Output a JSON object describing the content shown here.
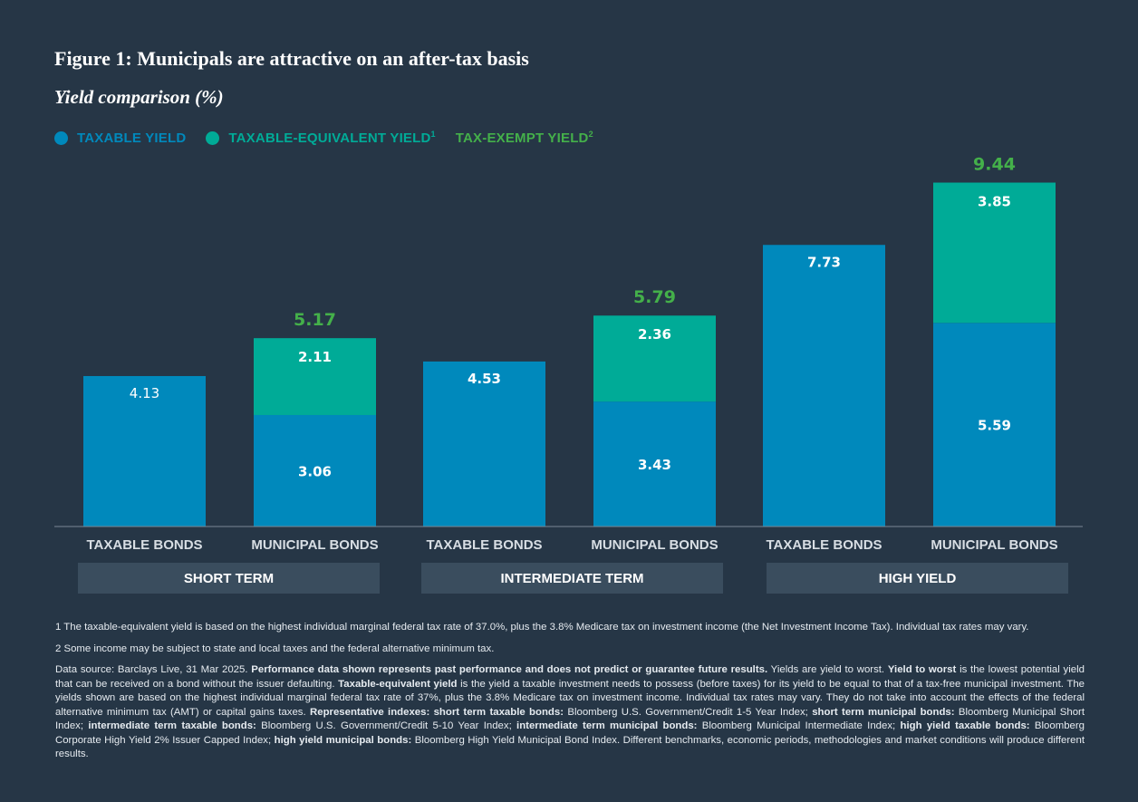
{
  "title": "Figure 1: Municipals are attractive on an after-tax basis",
  "subtitle": "Yield comparison (%)",
  "legend": {
    "taxable": "TAXABLE YIELD",
    "taxable_equivalent": "TAXABLE-EQUIVALENT YIELD",
    "taxable_equivalent_sup": "1",
    "tax_exempt": "TAX-EXEMPT YIELD",
    "tax_exempt_sup": "2"
  },
  "colors": {
    "background": "#263646",
    "taxable": "#0089bc",
    "taxable_equivalent": "#00ab97",
    "tax_exempt_text": "#44b04a",
    "group_box": "#3a4d5e",
    "axis_label": "#d8dee4"
  },
  "chart_data": {
    "type": "bar",
    "stacked": true,
    "categories": [
      "TAXABLE BONDS",
      "MUNICIPAL BONDS",
      "TAXABLE BONDS",
      "MUNICIPAL BONDS",
      "TAXABLE BONDS",
      "MUNICIPAL BONDS"
    ],
    "groups": [
      "SHORT TERM",
      "INTERMEDIATE TERM",
      "HIGH YIELD"
    ],
    "series": [
      {
        "name": "TAXABLE YIELD",
        "values": [
          4.13,
          3.06,
          4.53,
          3.43,
          7.73,
          5.59
        ]
      },
      {
        "name": "TAXABLE-EQUIVALENT YIELD",
        "values": [
          0,
          2.11,
          0,
          2.36,
          0,
          3.85
        ]
      }
    ],
    "totals": [
      null,
      "5.17",
      null,
      "5.79",
      null,
      "9.44"
    ],
    "ylim": [
      0,
      10
    ],
    "grid": false,
    "legend_position": "top-left"
  },
  "notes": {
    "note1": "1 The taxable-equivalent yield is based on the highest individual marginal federal tax rate of 37.0%, plus the 3.8% Medicare tax on investment income (the Net Investment Income Tax). Individual tax rates may vary.",
    "note2": "2 Some income may be subject to state and local taxes and the federal alternative minimum tax.",
    "s1": "Data source: Barclays Live, 31 Mar 2025. ",
    "s2": "Performance data shown represents past performance and does not predict or guarantee future results.",
    "s3": " Yields are yield to worst. ",
    "s4": "Yield to worst",
    "s5": " is the lowest potential yield that can be received on a bond without the issuer defaulting. ",
    "s6": "Taxable-equivalent yield",
    "s7": " is the yield a taxable investment needs to possess (before taxes) for its yield to be equal to that of a tax-free municipal investment. The yields shown are based on the highest individual marginal federal tax rate of 37%, plus the 3.8% Medicare tax on investment income. Individual tax rates may vary. They do not take into account the effects of the federal alternative minimum tax (AMT) or capital gains taxes. ",
    "s8": "Representative indexes: short term taxable bonds:",
    "s9": " Bloomberg U.S. Government/Credit 1-5 Year Index; ",
    "s10": "short term municipal bonds:",
    "s11": " Bloomberg Municipal Short Index; ",
    "s12": "intermediate term taxable bonds:",
    "s13": " Bloomberg U.S. Government/Credit 5-10 Year Index; ",
    "s14": "intermediate term municipal bonds:",
    "s15": " Bloomberg Municipal Intermediate Index; ",
    "s16": "high yield taxable bonds:",
    "s17": " Bloomberg Corporate High Yield 2% Issuer Capped Index; ",
    "s18": "high yield municipal bonds:",
    "s19": " Bloomberg High Yield Municipal Bond Index. Different benchmarks, economic periods, methodologies and market conditions will produce different results."
  }
}
